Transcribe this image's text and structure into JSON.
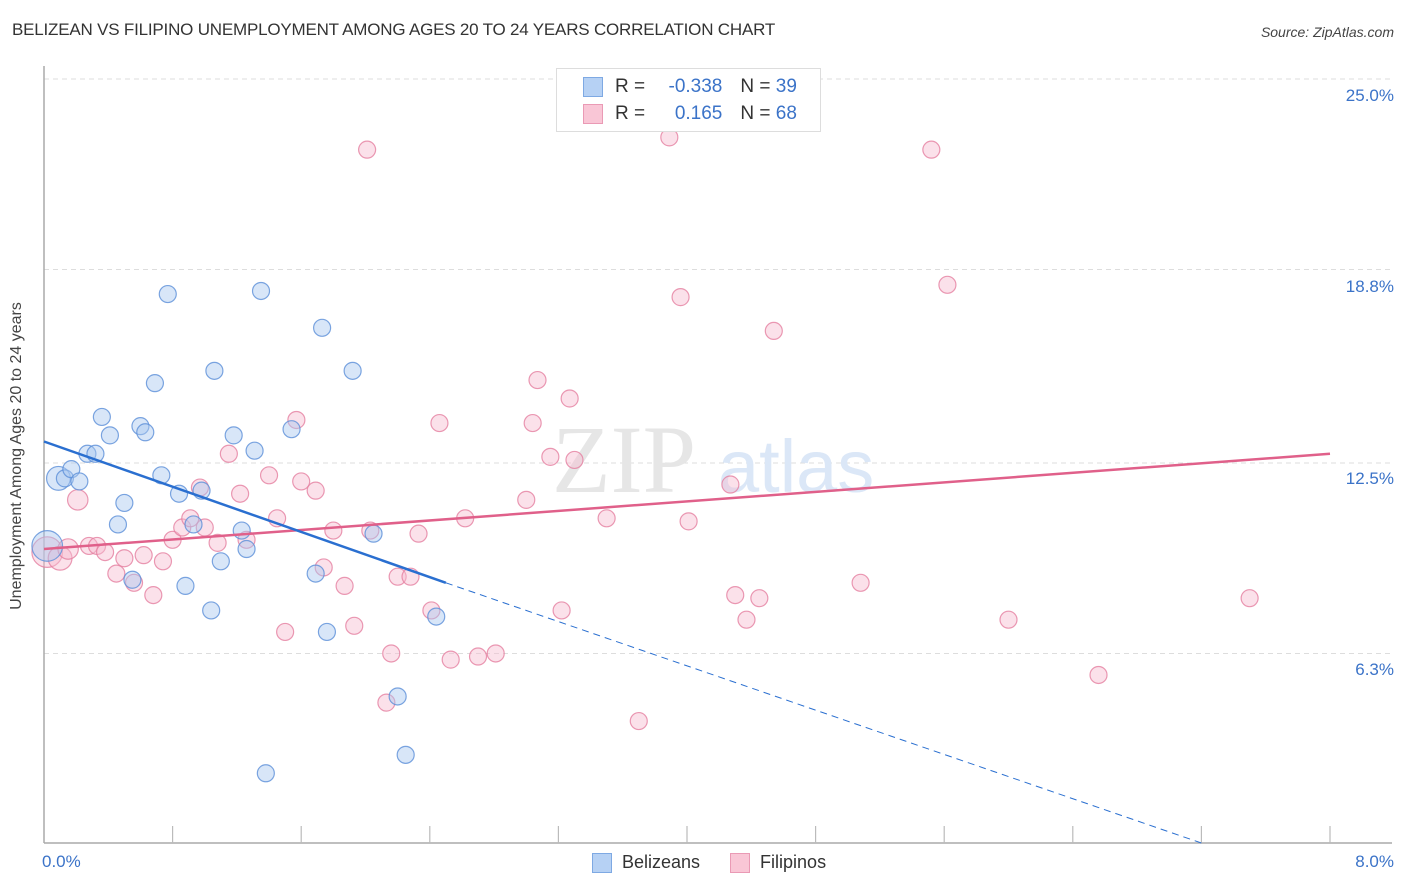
{
  "header": {
    "title": "BELIZEAN VS FILIPINO UNEMPLOYMENT AMONG AGES 20 TO 24 YEARS CORRELATION CHART",
    "source": "Source: ZipAtlas.com"
  },
  "legend": {
    "rows": [
      {
        "r_label": "R = ",
        "r_value": "-0.338",
        "n_label": "N = ",
        "n_value": "39",
        "color": "#a9c8f0"
      },
      {
        "r_label": "R = ",
        "r_value": "0.165",
        "n_label": "N = ",
        "n_value": "68",
        "color": "#f7bcd0"
      }
    ],
    "bottom": [
      {
        "label": "Belizeans",
        "color": "#a9c8f0"
      },
      {
        "label": "Filipinos",
        "color": "#f7bcd0"
      }
    ]
  },
  "axes": {
    "ylabel": "Unemployment Among Ages 20 to 24 years",
    "yticks": [
      "25.0%",
      "18.8%",
      "12.5%",
      "6.3%"
    ],
    "xticks": [
      "0.0%",
      "8.0%"
    ]
  },
  "watermark": {
    "zip": "ZIP",
    "atlas": "atlas"
  },
  "colors": {
    "belizean_fill": "#a9c8f0",
    "belizean_stroke": "#5b8fd8",
    "belizean_line": "#2a6fd0",
    "filipino_fill": "#f7bcd0",
    "filipino_stroke": "#e57fa0",
    "filipino_line": "#e0608a",
    "tick_label": "#3b73c8"
  },
  "chart_data": {
    "type": "scatter",
    "title": "BELIZEAN VS FILIPINO UNEMPLOYMENT AMONG AGES 20 TO 24 YEARS CORRELATION CHART",
    "xlabel": "",
    "ylabel": "Unemployment Among Ages 20 to 24 years",
    "xlim": [
      0.0,
      8.0
    ],
    "ylim": [
      0.0,
      26.0
    ],
    "yticks": [
      6.3,
      12.5,
      18.8,
      25.0
    ],
    "xticks": [
      0.0,
      8.0
    ],
    "grid": true,
    "legend_position": "top-center",
    "series": [
      {
        "name": "Belizeans",
        "R": -0.338,
        "N": 39,
        "trend": {
          "x0": 0.0,
          "y0": 13.2,
          "x1": 2.5,
          "y1": 8.6,
          "solid_until_x": 2.5,
          "dashed_to_x": 7.2,
          "dashed_to_y": 0.0
        },
        "points": [
          [
            0.02,
            9.8,
            1.8
          ],
          [
            0.09,
            12.0,
            1.4
          ],
          [
            0.13,
            12.0,
            1
          ],
          [
            0.17,
            12.3,
            1
          ],
          [
            0.22,
            11.9,
            1
          ],
          [
            0.27,
            12.8,
            1
          ],
          [
            0.32,
            12.8,
            1
          ],
          [
            0.36,
            14.0,
            1
          ],
          [
            0.41,
            13.4,
            1
          ],
          [
            0.46,
            10.5,
            1
          ],
          [
            0.5,
            11.2,
            1
          ],
          [
            0.55,
            8.7,
            1
          ],
          [
            0.6,
            13.7,
            1
          ],
          [
            0.63,
            13.5,
            1
          ],
          [
            0.69,
            15.1,
            1
          ],
          [
            0.73,
            12.1,
            1
          ],
          [
            0.77,
            18.0,
            1
          ],
          [
            0.84,
            11.5,
            1
          ],
          [
            0.88,
            8.5,
            1
          ],
          [
            0.93,
            10.5,
            1
          ],
          [
            0.98,
            11.6,
            1
          ],
          [
            1.04,
            7.7,
            1
          ],
          [
            1.06,
            15.5,
            1
          ],
          [
            1.1,
            9.3,
            1
          ],
          [
            1.18,
            13.4,
            1
          ],
          [
            1.23,
            10.3,
            1
          ],
          [
            1.26,
            9.7,
            1
          ],
          [
            1.31,
            12.9,
            1
          ],
          [
            1.35,
            18.1,
            1
          ],
          [
            1.38,
            2.4,
            1
          ],
          [
            1.54,
            13.6,
            1
          ],
          [
            1.69,
            8.9,
            1
          ],
          [
            1.73,
            16.9,
            1
          ],
          [
            1.76,
            7.0,
            1
          ],
          [
            1.92,
            15.5,
            1
          ],
          [
            2.05,
            10.2,
            1
          ],
          [
            2.2,
            4.9,
            1
          ],
          [
            2.25,
            3.0,
            1
          ],
          [
            2.44,
            7.5,
            1
          ]
        ]
      },
      {
        "name": "Filipinos",
        "R": 0.165,
        "N": 68,
        "trend": {
          "x0": 0.0,
          "y0": 9.7,
          "x1": 8.0,
          "y1": 12.8
        },
        "points": [
          [
            0.02,
            9.6,
            1.8
          ],
          [
            0.1,
            9.4,
            1.4
          ],
          [
            0.15,
            9.7,
            1.2
          ],
          [
            0.21,
            11.3,
            1.2
          ],
          [
            0.28,
            9.8,
            1
          ],
          [
            0.33,
            9.8,
            1
          ],
          [
            0.38,
            9.6,
            1
          ],
          [
            0.45,
            8.9,
            1
          ],
          [
            0.5,
            9.4,
            1
          ],
          [
            0.56,
            8.6,
            1
          ],
          [
            0.62,
            9.5,
            1
          ],
          [
            0.68,
            8.2,
            1
          ],
          [
            0.74,
            9.3,
            1
          ],
          [
            0.8,
            10.0,
            1
          ],
          [
            0.86,
            10.4,
            1
          ],
          [
            0.91,
            10.7,
            1
          ],
          [
            0.97,
            11.7,
            1
          ],
          [
            1.0,
            10.4,
            1
          ],
          [
            1.08,
            9.9,
            1
          ],
          [
            1.15,
            12.8,
            1
          ],
          [
            1.22,
            11.5,
            1
          ],
          [
            1.26,
            10.0,
            1
          ],
          [
            1.4,
            12.1,
            1
          ],
          [
            1.45,
            10.7,
            1
          ],
          [
            1.5,
            7.0,
            1
          ],
          [
            1.57,
            13.9,
            1
          ],
          [
            1.6,
            11.9,
            1
          ],
          [
            1.69,
            11.6,
            1
          ],
          [
            1.74,
            9.1,
            1
          ],
          [
            1.8,
            10.3,
            1
          ],
          [
            1.87,
            8.5,
            1
          ],
          [
            1.93,
            7.2,
            1
          ],
          [
            2.01,
            22.7,
            1
          ],
          [
            2.03,
            10.3,
            1
          ],
          [
            2.13,
            4.7,
            1
          ],
          [
            2.16,
            6.3,
            1
          ],
          [
            2.2,
            8.8,
            1
          ],
          [
            2.28,
            8.8,
            1
          ],
          [
            2.33,
            10.2,
            1
          ],
          [
            2.41,
            7.7,
            1
          ],
          [
            2.46,
            13.8,
            1
          ],
          [
            2.53,
            6.1,
            1
          ],
          [
            2.62,
            10.7,
            1
          ],
          [
            2.7,
            6.2,
            1
          ],
          [
            2.81,
            6.3,
            1
          ],
          [
            3.04,
            13.8,
            1
          ],
          [
            3.07,
            15.2,
            1
          ],
          [
            3.15,
            12.7,
            1
          ],
          [
            3.22,
            7.7,
            1
          ],
          [
            3.27,
            14.6,
            1
          ],
          [
            3.3,
            12.6,
            1
          ],
          [
            3.5,
            10.7,
            1
          ],
          [
            3.7,
            4.1,
            1
          ],
          [
            3.89,
            23.1,
            1
          ],
          [
            3.96,
            17.9,
            1
          ],
          [
            4.01,
            10.6,
            1
          ],
          [
            4.27,
            11.8,
            1
          ],
          [
            4.3,
            8.2,
            1
          ],
          [
            4.37,
            7.4,
            1
          ],
          [
            4.54,
            16.8,
            1
          ],
          [
            5.08,
            8.6,
            1
          ],
          [
            5.52,
            22.7,
            1
          ],
          [
            5.62,
            18.3,
            1
          ],
          [
            6.0,
            7.4,
            1
          ],
          [
            6.56,
            5.6,
            1
          ],
          [
            7.5,
            8.1,
            1
          ],
          [
            4.45,
            8.1,
            1
          ],
          [
            3.0,
            11.3,
            1
          ]
        ]
      }
    ]
  }
}
